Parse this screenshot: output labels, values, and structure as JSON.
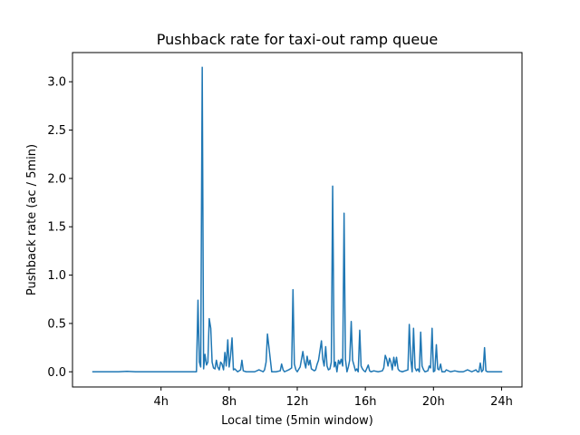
{
  "chart_data": {
    "type": "line",
    "title": "Pushback rate for taxi-out ramp queue",
    "xlabel": "Local time (5min window)",
    "ylabel": "Pushback rate (ac / 5min)",
    "x_unit": "hours",
    "xlim": [
      -1.2,
      25.2
    ],
    "ylim": [
      -0.157,
      3.302
    ],
    "xticks": [
      {
        "value": 4,
        "label": "4h"
      },
      {
        "value": 8,
        "label": "8h"
      },
      {
        "value": 12,
        "label": "12h"
      },
      {
        "value": 16,
        "label": "16h"
      },
      {
        "value": 20,
        "label": "20h"
      },
      {
        "value": 24,
        "label": "24h"
      }
    ],
    "yticks": [
      {
        "value": 0.0,
        "label": "0.0"
      },
      {
        "value": 0.5,
        "label": "0.5"
      },
      {
        "value": 1.0,
        "label": "1.0"
      },
      {
        "value": 1.5,
        "label": "1.5"
      },
      {
        "value": 2.0,
        "label": "2.0"
      },
      {
        "value": 2.5,
        "label": "2.5"
      },
      {
        "value": 3.0,
        "label": "3.0"
      }
    ],
    "grid": false,
    "legend": "none",
    "series": [
      {
        "color": "#1f77b4",
        "x": [
          0.0,
          0.5,
          1.0,
          1.5,
          2.0,
          2.5,
          3.0,
          3.5,
          4.0,
          4.5,
          5.0,
          5.5,
          6.0,
          6.08,
          6.17,
          6.25,
          6.33,
          6.42,
          6.5,
          6.58,
          6.67,
          6.75,
          6.83,
          6.92,
          7.0,
          7.08,
          7.17,
          7.25,
          7.33,
          7.42,
          7.5,
          7.58,
          7.67,
          7.75,
          7.83,
          7.92,
          8.0,
          8.08,
          8.17,
          8.25,
          8.33,
          8.5,
          8.67,
          8.75,
          8.83,
          9.0,
          9.25,
          9.5,
          9.75,
          10.0,
          10.08,
          10.17,
          10.25,
          10.5,
          10.75,
          11.0,
          11.08,
          11.17,
          11.25,
          11.5,
          11.67,
          11.75,
          11.83,
          11.92,
          12.0,
          12.17,
          12.33,
          12.42,
          12.5,
          12.58,
          12.67,
          12.75,
          12.83,
          13.0,
          13.08,
          13.17,
          13.25,
          13.42,
          13.5,
          13.58,
          13.67,
          13.75,
          13.83,
          13.92,
          14.0,
          14.08,
          14.17,
          14.25,
          14.33,
          14.42,
          14.5,
          14.58,
          14.67,
          14.75,
          14.83,
          14.92,
          15.0,
          15.08,
          15.17,
          15.25,
          15.33,
          15.42,
          15.5,
          15.58,
          15.67,
          15.75,
          15.83,
          15.92,
          16.0,
          16.17,
          16.25,
          16.33,
          16.5,
          16.75,
          17.0,
          17.08,
          17.17,
          17.25,
          17.33,
          17.42,
          17.5,
          17.58,
          17.67,
          17.75,
          17.83,
          17.92,
          18.0,
          18.17,
          18.33,
          18.5,
          18.58,
          18.67,
          18.75,
          18.83,
          18.92,
          19.0,
          19.08,
          19.17,
          19.25,
          19.33,
          19.42,
          19.5,
          19.67,
          19.75,
          19.83,
          19.92,
          20.0,
          20.08,
          20.17,
          20.25,
          20.33,
          20.42,
          20.5,
          20.58,
          20.67,
          20.75,
          21.0,
          21.25,
          21.5,
          21.75,
          22.0,
          22.25,
          22.5,
          22.58,
          22.67,
          22.75,
          22.83,
          22.92,
          23.0,
          23.08,
          23.17,
          23.25,
          23.5,
          23.75,
          24.0
        ],
        "values": [
          0.0,
          0.0,
          0.0,
          0.0,
          0.005,
          0.0,
          0.0,
          0.0,
          0.0,
          0.0,
          0.0,
          0.0,
          0.0,
          0.0,
          0.74,
          0.1,
          0.05,
          3.15,
          0.03,
          0.18,
          0.07,
          0.1,
          0.55,
          0.45,
          0.1,
          0.04,
          0.03,
          0.12,
          0.05,
          0.02,
          0.1,
          0.08,
          0.02,
          0.2,
          0.06,
          0.33,
          0.05,
          0.16,
          0.35,
          0.02,
          0.03,
          0.0,
          0.02,
          0.12,
          0.01,
          0.0,
          0.0,
          0.0,
          0.02,
          0.0,
          0.02,
          0.1,
          0.39,
          0.0,
          0.0,
          0.01,
          0.08,
          0.02,
          0.0,
          0.02,
          0.04,
          0.85,
          0.08,
          0.02,
          0.0,
          0.05,
          0.21,
          0.1,
          0.04,
          0.16,
          0.07,
          0.12,
          0.03,
          0.01,
          0.02,
          0.08,
          0.12,
          0.32,
          0.13,
          0.06,
          0.26,
          0.06,
          0.02,
          0.03,
          0.1,
          1.92,
          0.05,
          0.1,
          0.0,
          0.12,
          0.08,
          0.13,
          0.06,
          1.64,
          0.13,
          0.0,
          0.05,
          0.12,
          0.52,
          0.12,
          0.07,
          0.01,
          0.03,
          0.0,
          0.43,
          0.06,
          0.03,
          0.01,
          0.0,
          0.07,
          0.01,
          0.0,
          0.01,
          0.0,
          0.01,
          0.04,
          0.17,
          0.13,
          0.06,
          0.14,
          0.1,
          0.02,
          0.15,
          0.06,
          0.15,
          0.03,
          0.01,
          0.0,
          0.01,
          0.02,
          0.49,
          0.12,
          0.0,
          0.45,
          0.04,
          0.01,
          0.03,
          0.0,
          0.41,
          0.06,
          0.02,
          0.0,
          0.01,
          0.06,
          0.04,
          0.45,
          0.0,
          0.01,
          0.28,
          0.03,
          0.02,
          0.08,
          0.0,
          0.0,
          0.0,
          0.02,
          0.0,
          0.01,
          0.0,
          0.0,
          0.02,
          0.0,
          0.02,
          0.0,
          0.0,
          0.09,
          0.0,
          0.02,
          0.25,
          0.01,
          0.0,
          0.0,
          0.0,
          0.0,
          0.0
        ]
      }
    ]
  }
}
